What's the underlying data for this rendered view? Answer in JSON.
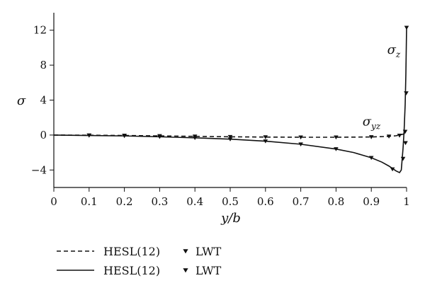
{
  "chart_data": {
    "type": "line",
    "xlabel": "y/b",
    "ylabel": "σ",
    "xlim": [
      0,
      1
    ],
    "ylim": [
      -6,
      14
    ],
    "xticks": [
      "0",
      "0.1",
      "0.2",
      "0.3",
      "0.4",
      "0.5",
      "0.6",
      "0.7",
      "0.8",
      "0.9",
      "1"
    ],
    "xtick_values": [
      0,
      0.1,
      0.2,
      0.3,
      0.4,
      0.5,
      0.6,
      0.7,
      0.8,
      0.9,
      1
    ],
    "yticks": [
      "−4",
      "0",
      "4",
      "8",
      "12"
    ],
    "ytick_values": [
      -4,
      0,
      4,
      8,
      12
    ],
    "grid": false,
    "legend_position": "bottom-left",
    "annotations": [
      {
        "text": "σ",
        "sub": "z",
        "x": 0.945,
        "y": 9.3
      },
      {
        "text": "σ",
        "sub": "yz",
        "x": 0.875,
        "y": 1.1
      }
    ],
    "series": [
      {
        "name": "HESL(12)",
        "kind": "line",
        "dash": "dashed",
        "color": "#111111",
        "x": [
          0,
          0.1,
          0.2,
          0.3,
          0.4,
          0.5,
          0.6,
          0.7,
          0.8,
          0.9,
          0.95,
          0.97,
          0.98,
          0.99,
          0.995
        ],
        "y": [
          0,
          -0.02,
          -0.05,
          -0.1,
          -0.15,
          -0.2,
          -0.23,
          -0.25,
          -0.25,
          -0.22,
          -0.15,
          -0.08,
          0,
          0.1,
          0.2
        ]
      },
      {
        "name": "LWT",
        "kind": "marker",
        "marker": "triangle-down",
        "color": "#111111",
        "x": [
          0.1,
          0.2,
          0.3,
          0.4,
          0.5,
          0.6,
          0.7,
          0.8,
          0.9,
          0.95,
          0.98,
          0.997
        ],
        "y": [
          -0.02,
          -0.05,
          -0.1,
          -0.15,
          -0.2,
          -0.23,
          -0.25,
          -0.25,
          -0.22,
          -0.15,
          -0.05,
          -0.9
        ]
      },
      {
        "name": "HESL(12)",
        "kind": "line",
        "dash": "solid",
        "color": "#111111",
        "x": [
          0,
          0.1,
          0.2,
          0.3,
          0.4,
          0.5,
          0.6,
          0.7,
          0.8,
          0.85,
          0.9,
          0.93,
          0.95,
          0.97,
          0.98,
          0.985,
          0.99,
          0.993,
          0.996,
          0.998,
          1.0
        ],
        "y": [
          0,
          -0.05,
          -0.1,
          -0.2,
          -0.32,
          -0.47,
          -0.7,
          -1.05,
          -1.6,
          -2.0,
          -2.6,
          -3.1,
          -3.55,
          -4.1,
          -4.3,
          -4.0,
          -1.5,
          0.5,
          3.5,
          7.0,
          12.3
        ]
      },
      {
        "name": "LWT",
        "kind": "marker",
        "marker": "triangle-down",
        "color": "#111111",
        "x": [
          0.1,
          0.2,
          0.3,
          0.4,
          0.5,
          0.6,
          0.7,
          0.8,
          0.9,
          0.96,
          0.99,
          0.996,
          0.999,
          1.0
        ],
        "y": [
          -0.05,
          -0.1,
          -0.2,
          -0.32,
          -0.47,
          -0.7,
          -1.05,
          -1.6,
          -2.6,
          -3.9,
          -2.7,
          0.4,
          4.8,
          12.3
        ]
      }
    ],
    "legend": [
      {
        "label": "HESL(12)",
        "style": "dashed",
        "marker_label": "LWT"
      },
      {
        "label": "HESL(12)",
        "style": "solid",
        "marker_label": "LWT"
      }
    ]
  }
}
